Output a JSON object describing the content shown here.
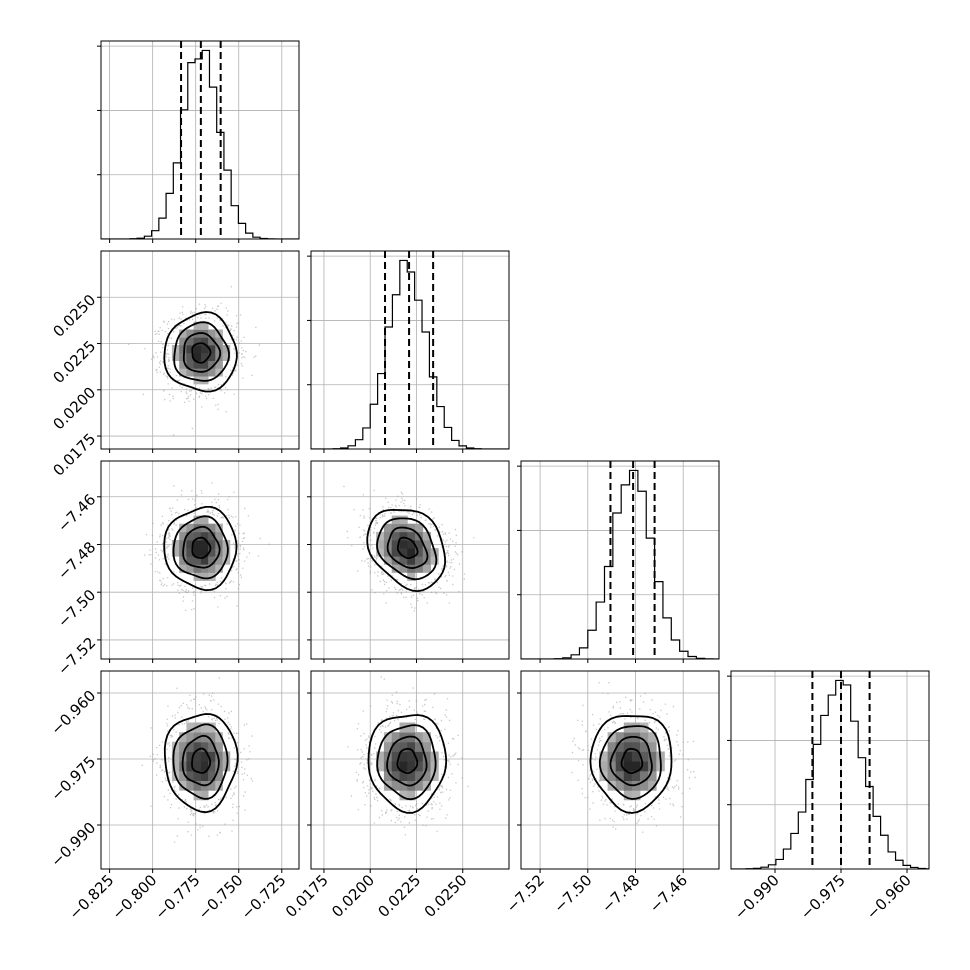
{
  "chart_data": {
    "type": "corner",
    "description_of_layout": "4x4 lower-triangular corner plot; diagonal = 1D histograms with 16/50/84% quantile lines; off-diagonal = 2D density with contours",
    "parameters": [
      {
        "name": "",
        "range": [
          -0.83,
          -0.715
        ],
        "ticks": [
          -0.825,
          -0.8,
          -0.775,
          -0.75,
          -0.725
        ],
        "tick_labels": [
          "−0.825",
          "−0.800",
          "−0.775",
          "−0.750",
          "−0.725"
        ],
        "mean": -0.772,
        "std": 0.0105,
        "quantiles": [
          -0.7835,
          -0.772,
          -0.7605
        ],
        "hist_bin_width": 0.0042,
        "y_ticks_on_diag": 3
      },
      {
        "name": "",
        "range": [
          0.0168,
          0.0275
        ],
        "ticks": [
          0.0175,
          0.02,
          0.0225,
          0.025
        ],
        "tick_labels": [
          "0.0175",
          "0.0200",
          "0.0225",
          "0.0250"
        ],
        "mean": 0.022,
        "std": 0.00105,
        "quantiles": [
          0.0208,
          0.0221,
          0.0234
        ],
        "hist_bin_width": 0.0004,
        "y_ticks_on_diag": 3
      },
      {
        "name": "",
        "range": [
          -7.528,
          -7.445
        ],
        "ticks": [
          -7.52,
          -7.5,
          -7.48,
          -7.46
        ],
        "tick_labels": [
          "−7.52",
          "−7.50",
          "−7.48",
          "−7.46"
        ],
        "mean": -7.4815,
        "std": 0.0085,
        "quantiles": [
          -7.4905,
          -7.481,
          -7.472
        ],
        "hist_bin_width": 0.0035,
        "y_ticks_on_diag": 3
      },
      {
        "name": "",
        "range": [
          -1.0,
          -0.955
        ],
        "ticks": [
          -0.99,
          -0.975,
          -0.96
        ],
        "tick_labels": [
          "−0.990",
          "−0.975",
          "−0.960"
        ],
        "mean": -0.9755,
        "std": 0.0055,
        "quantiles": [
          -0.9815,
          -0.975,
          -0.9685
        ],
        "hist_bin_width": 0.0017,
        "y_ticks_on_diag": 3
      }
    ],
    "correlations": [
      [
        1.0,
        0.0,
        0.0,
        0.0
      ],
      [
        0.0,
        1.0,
        -0.25,
        0.0
      ],
      [
        0.0,
        -0.25,
        1.0,
        0.0
      ],
      [
        0.0,
        0.0,
        0.0,
        1.0
      ]
    ],
    "contour_levels_sigma": [
      0.5,
      1.0,
      1.5,
      2.0
    ],
    "grid": true,
    "colors": {
      "line": "#000000",
      "scatter": "#808080",
      "grid": "#b0b0b0"
    }
  }
}
